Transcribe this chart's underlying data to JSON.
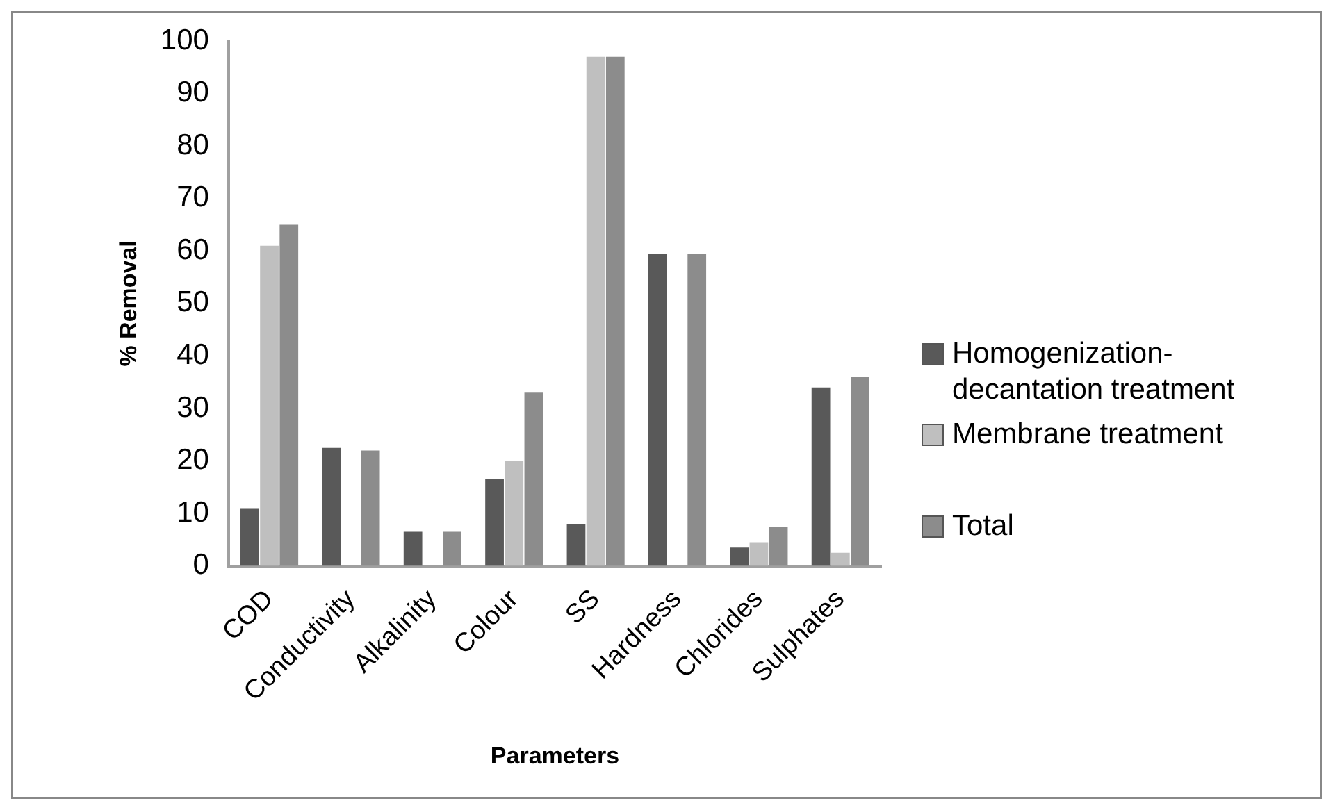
{
  "chart_data": {
    "type": "bar",
    "xlabel": "Parameters",
    "ylabel": "% Removal",
    "categories": [
      "COD",
      "Conductivity",
      "Alkalinity",
      "Colour",
      "SS",
      "Hardness",
      "Chlorides",
      "Sulphates"
    ],
    "series": [
      {
        "name": "Homogenization-decantation treatment",
        "color": "#595959",
        "values": [
          11,
          22.5,
          6.5,
          16.5,
          8,
          59.5,
          3.5,
          34
        ]
      },
      {
        "name": "Membrane treatment",
        "color": "#bfbfbf",
        "values": [
          61,
          0,
          0,
          20,
          97,
          0,
          4.5,
          2.5
        ]
      },
      {
        "name": "Total",
        "color": "#8c8c8c",
        "values": [
          65,
          22,
          6.5,
          33,
          97,
          59.5,
          7.5,
          36
        ]
      }
    ],
    "ylim": [
      0,
      100
    ],
    "yticks": [
      0,
      10,
      20,
      30,
      40,
      50,
      60,
      70,
      80,
      90,
      100
    ],
    "grid": false,
    "legend": "right"
  }
}
